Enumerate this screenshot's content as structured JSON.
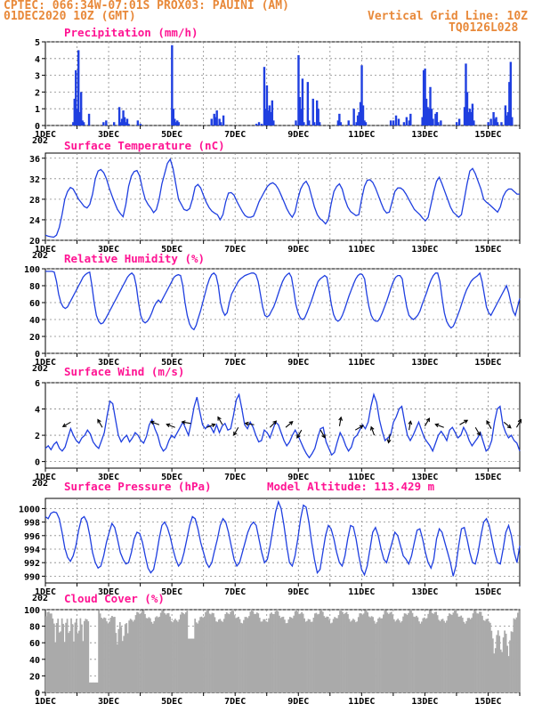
{
  "header": {
    "line1_left": "CPTEC:   066:34W-07:01S   PROX03: PAUINI (AM)",
    "line2_left": "01DEC2020 10Z (GMT)",
    "line2_right": "Vertical Grid Line: 10Z",
    "line3_right": "TQ0126L028"
  },
  "colors": {
    "series": "#1f3fe0",
    "cloud": "#aaaaaa",
    "title": "#ff1493",
    "header": "#e8893a"
  },
  "x_axis": {
    "labels": [
      "1DEC",
      "3DEC",
      "5DEC",
      "7DEC",
      "9DEC",
      "11DEC",
      "13DEC",
      "15DEC"
    ],
    "label_days": [
      0,
      2,
      4,
      6,
      8,
      10,
      12,
      14
    ],
    "cut_label": "202",
    "days_span": 15
  },
  "chart_data": [
    {
      "id": "precip",
      "type": "bar",
      "title": "Precipitation (mm/h)",
      "ylim": [
        0,
        5
      ],
      "yticks": [
        0,
        1,
        2,
        3,
        4,
        5
      ],
      "grid": true,
      "hourly_step": 1,
      "bars": [
        [
          21,
          0.2
        ],
        [
          22,
          1.6
        ],
        [
          23,
          3.3
        ],
        [
          24,
          1.0
        ],
        [
          25,
          4.5
        ],
        [
          26,
          0.8
        ],
        [
          27,
          2.0
        ],
        [
          28,
          0.3
        ],
        [
          29,
          0.2
        ],
        [
          33,
          0.7
        ],
        [
          44,
          0.2
        ],
        [
          46,
          0.3
        ],
        [
          52,
          0.2
        ],
        [
          56,
          1.1
        ],
        [
          57,
          0.2
        ],
        [
          58,
          0.4
        ],
        [
          59,
          0.9
        ],
        [
          60,
          0.5
        ],
        [
          61,
          0.2
        ],
        [
          62,
          0.4
        ],
        [
          63,
          0.1
        ],
        [
          70,
          0.3
        ],
        [
          72,
          0.1
        ],
        [
          96,
          4.8
        ],
        [
          97,
          1.0
        ],
        [
          98,
          0.4
        ],
        [
          99,
          0.2
        ],
        [
          100,
          0.3
        ],
        [
          101,
          0.2
        ],
        [
          126,
          0.4
        ],
        [
          128,
          0.7
        ],
        [
          129,
          0.5
        ],
        [
          130,
          0.9
        ],
        [
          132,
          0.4
        ],
        [
          133,
          0.2
        ],
        [
          135,
          0.6
        ],
        [
          160,
          0.1
        ],
        [
          162,
          0.2
        ],
        [
          164,
          0.1
        ],
        [
          166,
          3.5
        ],
        [
          167,
          1.0
        ],
        [
          168,
          2.4
        ],
        [
          169,
          0.9
        ],
        [
          170,
          1.2
        ],
        [
          171,
          0.8
        ],
        [
          172,
          1.5
        ],
        [
          173,
          0.3
        ],
        [
          190,
          0.3
        ],
        [
          192,
          4.2
        ],
        [
          193,
          1.7
        ],
        [
          194,
          1.0
        ],
        [
          195,
          2.8
        ],
        [
          196,
          0.2
        ],
        [
          199,
          2.6
        ],
        [
          200,
          0.3
        ],
        [
          203,
          1.6
        ],
        [
          204,
          0.2
        ],
        [
          206,
          1.5
        ],
        [
          207,
          1.0
        ],
        [
          208,
          0.2
        ],
        [
          222,
          0.3
        ],
        [
          223,
          0.7
        ],
        [
          224,
          0.2
        ],
        [
          230,
          0.3
        ],
        [
          234,
          1.0
        ],
        [
          236,
          0.2
        ],
        [
          237,
          0.6
        ],
        [
          238,
          0.8
        ],
        [
          239,
          1.4
        ],
        [
          240,
          3.6
        ],
        [
          241,
          1.2
        ],
        [
          242,
          0.3
        ],
        [
          243,
          0.2
        ],
        [
          262,
          0.3
        ],
        [
          264,
          0.3
        ],
        [
          266,
          0.6
        ],
        [
          268,
          0.4
        ],
        [
          272,
          0.2
        ],
        [
          274,
          0.5
        ],
        [
          276,
          0.3
        ],
        [
          277,
          0.7
        ],
        [
          286,
          0.5
        ],
        [
          287,
          3.3
        ],
        [
          288,
          3.4
        ],
        [
          289,
          1.6
        ],
        [
          290,
          1.1
        ],
        [
          291,
          1.0
        ],
        [
          292,
          2.3
        ],
        [
          293,
          1.0
        ],
        [
          294,
          0.4
        ],
        [
          296,
          0.7
        ],
        [
          297,
          0.8
        ],
        [
          298,
          0.2
        ],
        [
          300,
          0.3
        ],
        [
          312,
          0.2
        ],
        [
          314,
          0.4
        ],
        [
          318,
          1.1
        ],
        [
          319,
          3.7
        ],
        [
          320,
          2.0
        ],
        [
          321,
          0.8
        ],
        [
          322,
          1.0
        ],
        [
          323,
          0.8
        ],
        [
          324,
          1.3
        ],
        [
          325,
          0.3
        ],
        [
          336,
          0.2
        ],
        [
          338,
          0.4
        ],
        [
          340,
          0.8
        ],
        [
          341,
          0.4
        ],
        [
          342,
          0.5
        ],
        [
          343,
          0.2
        ],
        [
          346,
          0.2
        ],
        [
          349,
          1.2
        ],
        [
          350,
          0.6
        ],
        [
          351,
          0.8
        ],
        [
          352,
          2.6
        ],
        [
          353,
          3.8
        ],
        [
          354,
          0.5
        ]
      ]
    },
    {
      "id": "temp",
      "type": "line",
      "title": "Surface Temperature (nC)",
      "ylim": [
        20,
        37
      ],
      "yticks": [
        20,
        24,
        28,
        32,
        36
      ],
      "grid": true,
      "step": 3,
      "y": [
        21,
        20.8,
        20.7,
        20.6,
        21,
        22.5,
        25,
        28,
        29.5,
        30.3,
        30,
        29,
        28,
        27.3,
        26.6,
        26.3,
        27,
        29,
        32,
        33.5,
        33.8,
        33.2,
        32,
        30.2,
        28.7,
        27.3,
        26,
        25.2,
        24.6,
        27,
        30.5,
        32.5,
        33.4,
        33.6,
        32.5,
        30,
        28,
        27,
        26.3,
        25.4,
        26,
        28,
        31,
        33,
        35,
        35.8,
        34,
        31,
        28,
        27,
        26,
        25.8,
        26.2,
        28,
        30.4,
        30.9,
        30.2,
        28.7,
        27.4,
        26.4,
        25.7,
        25.3,
        25,
        24,
        25,
        27.5,
        29.2,
        29.3,
        28.8,
        27.6,
        26.6,
        25.6,
        24.8,
        24.5,
        24.5,
        24.7,
        26,
        27.5,
        28.5,
        29.5,
        30.5,
        31,
        31.2,
        30.8,
        30,
        28.8,
        27.5,
        26.2,
        25.2,
        24.5,
        25.5,
        28,
        30,
        31,
        31.5,
        30.5,
        28.5,
        26.5,
        25,
        24.2,
        23.8,
        23.2,
        24,
        27,
        29.5,
        30.5,
        31,
        30,
        28,
        26.5,
        25.6,
        25.2,
        24.8,
        25,
        28,
        30.5,
        31.7,
        31.8,
        31.3,
        30.2,
        28.8,
        27.3,
        26,
        25.3,
        25.5,
        27.5,
        29.5,
        30.2,
        30.2,
        29.8,
        29,
        28,
        27,
        26,
        25.5,
        25,
        24.3,
        23.8,
        24.5,
        27,
        29.5,
        31.5,
        32.3,
        31,
        29.5,
        28,
        26.5,
        25.5,
        25,
        24.5,
        25,
        28,
        31,
        33.5,
        34,
        33,
        31.5,
        30,
        28,
        27.4,
        27,
        26.5,
        26,
        25.5,
        26.5,
        28.5,
        29.5,
        30,
        30,
        29.5,
        29,
        29
      ]
    },
    {
      "id": "rh",
      "type": "line",
      "title": "Relative Humidity (%)",
      "ylim": [
        0,
        100
      ],
      "yticks": [
        0,
        20,
        40,
        60,
        80,
        100
      ],
      "grid": true,
      "step": 3,
      "y": [
        97,
        97,
        97,
        97,
        96,
        85,
        70,
        60,
        55,
        53,
        55,
        60,
        65,
        70,
        75,
        80,
        85,
        90,
        93,
        95,
        96,
        80,
        60,
        45,
        38,
        35,
        36,
        40,
        45,
        50,
        55,
        60,
        65,
        70,
        75,
        80,
        85,
        90,
        93,
        95,
        92,
        80,
        60,
        45,
        38,
        36,
        38,
        42,
        48,
        55,
        60,
        63,
        60,
        65,
        70,
        75,
        80,
        85,
        90,
        92,
        93,
        92,
        80,
        60,
        45,
        35,
        30,
        28,
        33,
        42,
        50,
        60,
        70,
        80,
        88,
        93,
        95,
        92,
        80,
        60,
        50,
        45,
        48,
        60,
        70,
        75,
        80,
        85,
        88,
        90,
        92,
        93,
        94,
        95,
        95,
        93,
        85,
        70,
        55,
        45,
        43,
        45,
        50,
        55,
        62,
        70,
        78,
        85,
        90,
        93,
        95,
        90,
        75,
        58,
        48,
        42,
        40,
        42,
        48,
        55,
        62,
        70,
        78,
        85,
        88,
        90,
        92,
        90,
        75,
        58,
        46,
        40,
        38,
        40,
        45,
        52,
        60,
        68,
        75,
        82,
        88,
        92,
        94,
        93,
        88,
        70,
        55,
        45,
        40,
        38,
        38,
        42,
        48,
        55,
        62,
        70,
        78,
        85,
        90,
        92,
        92,
        88,
        70,
        55,
        45,
        42,
        40,
        42,
        45,
        50,
        58,
        65,
        72,
        80,
        87,
        92,
        95,
        95,
        85,
        65,
        48,
        38,
        33,
        30,
        32,
        38,
        45,
        52,
        60,
        68,
        75,
        80,
        85,
        88,
        90,
        92,
        95,
        85,
        70,
        55,
        48,
        45,
        50,
        55,
        60,
        65,
        70,
        75,
        80,
        72,
        60,
        50,
        45,
        55,
        65
      ]
    },
    {
      "id": "wind",
      "type": "line",
      "title": "Surface Wind (m/s)",
      "ylim": [
        -0.5,
        6
      ],
      "yticks": [
        0,
        2,
        4,
        6
      ],
      "grid": true,
      "step": 3,
      "y": [
        1.0,
        1.2,
        0.9,
        1.3,
        1.5,
        1.0,
        0.8,
        1.1,
        1.8,
        2.5,
        2.0,
        1.6,
        1.4,
        1.8,
        2.0,
        2.4,
        2.1,
        1.5,
        1.2,
        1.0,
        1.6,
        2.2,
        3.5,
        4.6,
        4.4,
        3.2,
        2.0,
        1.5,
        1.8,
        2.0,
        1.5,
        1.8,
        2.2,
        2.0,
        1.6,
        1.4,
        1.9,
        2.8,
        3.2,
        2.5,
        2.0,
        1.2,
        0.8,
        1.0,
        1.6,
        2.0,
        1.8,
        2.2,
        2.6,
        3.0,
        2.5,
        2.0,
        3.0,
        4.2,
        4.9,
        3.8,
        2.8,
        2.5,
        2.8,
        2.6,
        2.2,
        2.8,
        2.2,
        2.7,
        2.9,
        2.4,
        2.5,
        3.5,
        4.7,
        5.1,
        4.0,
        2.8,
        2.5,
        3.0,
        2.6,
        2.0,
        1.5,
        1.6,
        2.4,
        2.2,
        1.8,
        2.4,
        3.0,
        2.8,
        2.2,
        1.6,
        1.2,
        1.5,
        2.0,
        2.4,
        2.0,
        1.5,
        1.0,
        0.6,
        0.3,
        0.6,
        1.0,
        1.8,
        2.5,
        2.6,
        1.5,
        1.0,
        0.5,
        0.7,
        1.5,
        2.2,
        1.8,
        1.2,
        0.8,
        1.1,
        1.8,
        2.0,
        2.4,
        2.8,
        2.5,
        3.0,
        4.2,
        5.1,
        4.5,
        3.2,
        2.3,
        1.6,
        1.8,
        2.0,
        3.0,
        3.4,
        4.0,
        4.2,
        3.0,
        2.0,
        1.6,
        2.0,
        2.5,
        3.0,
        2.4,
        1.8,
        1.5,
        1.2,
        0.8,
        1.4,
        2.0,
        2.3,
        2.0,
        1.6,
        2.4,
        2.6,
        2.2,
        1.8,
        2.0,
        2.6,
        2.2,
        1.6,
        1.2,
        1.5,
        1.8,
        2.2,
        1.5,
        0.8,
        1.0,
        1.6,
        3.0,
        4.0,
        4.2,
        2.8,
        2.2,
        1.8,
        2.0,
        1.6,
        1.4,
        0.8
      ]
    },
    {
      "id": "pres",
      "type": "line",
      "title": "Surface Pressure (hPa)",
      "subtitle": "Model Altitude: 113.429 m",
      "ylim": [
        989,
        1001.5
      ],
      "yticks": [
        990,
        992,
        994,
        996,
        998,
        1000
      ],
      "grid": true,
      "step": 3,
      "y": [
        998.8,
        998.5,
        999.3,
        999.5,
        999.4,
        998.5,
        996.5,
        994.2,
        992.8,
        992.2,
        993.0,
        994.5,
        996.8,
        998.5,
        998.8,
        998.0,
        996.0,
        993.5,
        992.0,
        991.2,
        991.5,
        993.0,
        995.0,
        996.5,
        997.8,
        997.2,
        995.5,
        993.5,
        992.5,
        991.8,
        992.0,
        993.5,
        995.5,
        996.5,
        996.3,
        995.0,
        993.0,
        991.2,
        990.5,
        991.0,
        993.0,
        995.5,
        997.5,
        998.0,
        997.2,
        995.8,
        994.0,
        992.5,
        991.5,
        992.0,
        993.5,
        995.5,
        997.5,
        998.8,
        998.5,
        997.0,
        995.0,
        993.5,
        992.0,
        991.3,
        992.0,
        993.8,
        995.5,
        997.5,
        998.5,
        998.0,
        996.5,
        994.5,
        992.5,
        991.5,
        992.0,
        993.5,
        995.0,
        996.5,
        997.5,
        998.0,
        997.5,
        995.5,
        993.5,
        992.0,
        992.5,
        994.5,
        997.0,
        999.5,
        1001.0,
        1000.0,
        997.5,
        994.5,
        992.0,
        991.5,
        993.0,
        995.5,
        998.5,
        1000.5,
        1000.2,
        998.0,
        995.0,
        992.5,
        990.5,
        991.0,
        993.5,
        996.0,
        997.5,
        997.0,
        995.5,
        993.5,
        992.0,
        991.5,
        993.0,
        995.5,
        997.5,
        997.3,
        995.5,
        993.0,
        991.0,
        990.2,
        991.5,
        994.0,
        996.5,
        997.2,
        996.0,
        994.0,
        992.5,
        992.0,
        993.5,
        995.0,
        996.5,
        996.0,
        994.5,
        993.0,
        992.5,
        991.8,
        993.0,
        995.0,
        996.8,
        997.0,
        995.5,
        993.5,
        992.0,
        991.2,
        992.5,
        995.5,
        997.0,
        996.5,
        995.0,
        993.5,
        992.0,
        990.0,
        991.5,
        994.5,
        997.0,
        997.2,
        995.5,
        993.5,
        992.0,
        991.8,
        993.5,
        996.0,
        998.0,
        998.5,
        997.5,
        995.5,
        993.5,
        992.0,
        991.8,
        994.0,
        996.5,
        997.5,
        996.0,
        993.5,
        992.0,
        994.5
      ]
    },
    {
      "id": "cloud",
      "type": "bar",
      "title": "Cloud Cover (%)",
      "ylim": [
        0,
        100
      ],
      "yticks": [
        0,
        20,
        40,
        60,
        80,
        100
      ],
      "grid": true,
      "note": "near-continuous grey columns, mostly 85-100%, with deep drops near 1DEC, 2.5DEC and 14.5DEC"
    }
  ]
}
